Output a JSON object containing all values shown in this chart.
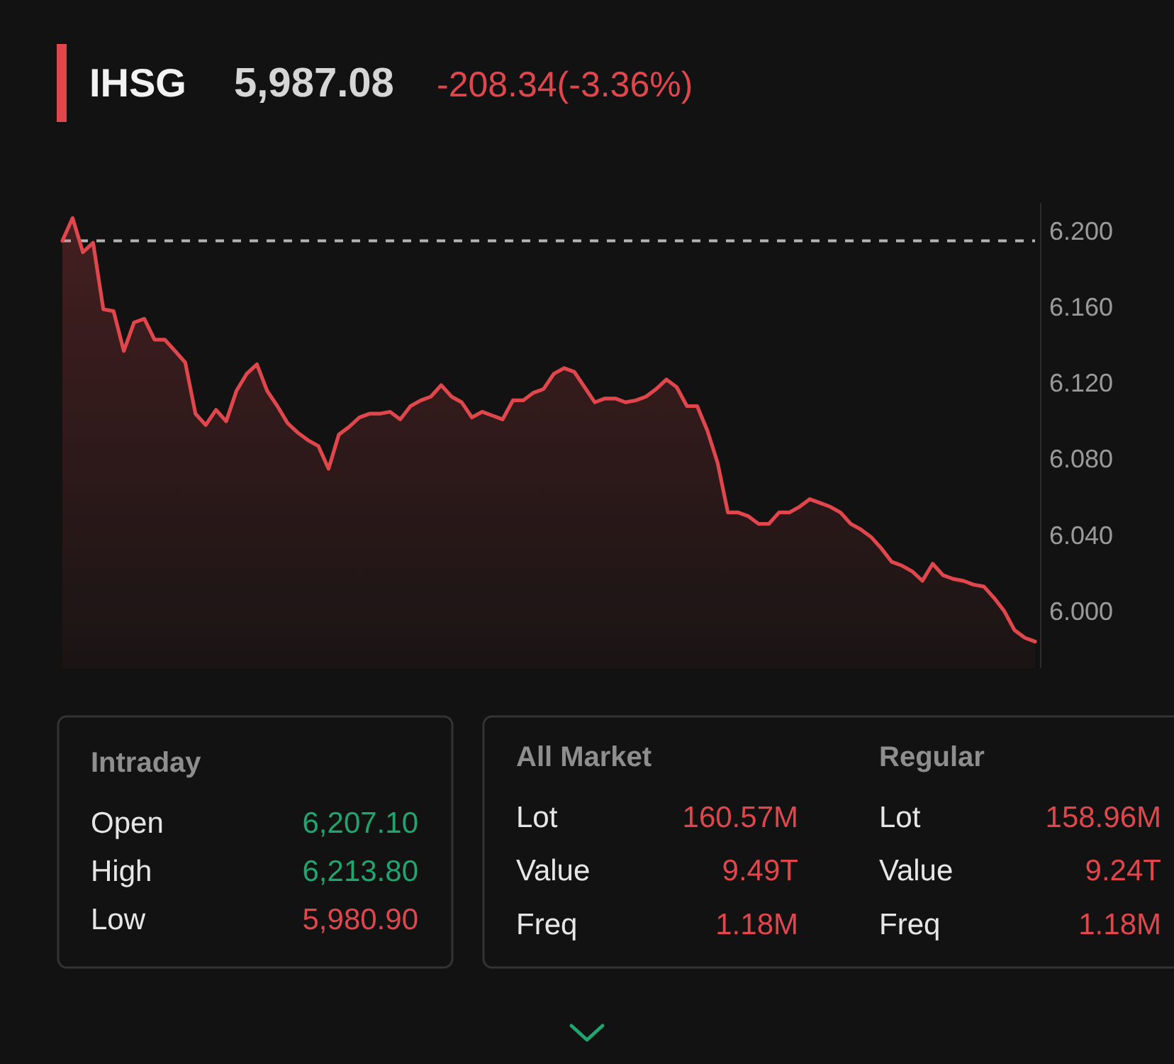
{
  "chart_data": [
    {
      "type": "area",
      "title": "IHSG",
      "subtitle": "5,987.08",
      "annotations": [
        "-208.34(-3.36%)"
      ],
      "categories": [
        null,
        null,
        null,
        null,
        null,
        null,
        null,
        null,
        null,
        null,
        null,
        null,
        null,
        null,
        null,
        null,
        null,
        null,
        null,
        null,
        null,
        null,
        null,
        null,
        null,
        null,
        null,
        null,
        null,
        null,
        null,
        null,
        null,
        null,
        null,
        null,
        null,
        null,
        null,
        null,
        null,
        null,
        null,
        null,
        null,
        null,
        null,
        null,
        null,
        null,
        null,
        null,
        null,
        null,
        null,
        null,
        null,
        null,
        null,
        null,
        null,
        null,
        null,
        null,
        null,
        null,
        null,
        null,
        null,
        null,
        null,
        null,
        null,
        null,
        null,
        null,
        null,
        null,
        null,
        null,
        null,
        null,
        null,
        null,
        null,
        null,
        null,
        null,
        null,
        null,
        null,
        null,
        null,
        null,
        null,
        null
      ],
      "values": [
        6.195,
        6.207,
        6.189,
        6.194,
        6.159,
        6.158,
        6.137,
        6.152,
        6.154,
        6.143,
        6.143,
        6.137,
        6.131,
        6.104,
        6.098,
        6.106,
        6.1,
        6.116,
        6.125,
        6.13,
        6.116,
        6.108,
        6.099,
        6.094,
        6.09,
        6.087,
        6.075,
        6.093,
        6.097,
        6.102,
        6.104,
        6.104,
        6.105,
        6.101,
        6.108,
        6.111,
        6.113,
        6.119,
        6.113,
        6.11,
        6.102,
        6.105,
        6.103,
        6.101,
        6.111,
        6.111,
        6.115,
        6.117,
        6.125,
        6.128,
        6.126,
        6.118,
        6.11,
        6.112,
        6.112,
        6.11,
        6.111,
        6.113,
        6.117,
        6.122,
        6.118,
        6.108,
        6.108,
        6.095,
        6.078,
        6.052,
        6.052,
        6.05,
        6.046,
        6.046,
        6.052,
        6.052,
        6.055,
        6.059,
        6.057,
        6.055,
        6.052,
        6.046,
        6.043,
        6.039,
        6.033,
        6.026,
        6.024,
        6.021,
        6.016,
        6.025,
        6.019,
        6.017,
        6.016,
        6.014,
        6.013,
        6.007,
        6.0,
        5.99,
        5.986,
        5.984
      ],
      "color": "#e0474c",
      "ylim": [
        5.97,
        6.215
      ],
      "yticks": [
        {
          "value": 6.0,
          "label": "6.000"
        },
        {
          "value": 6.04,
          "label": "6.040"
        },
        {
          "value": 6.08,
          "label": "6.080"
        },
        {
          "value": 6.12,
          "label": "6.120"
        },
        {
          "value": 6.16,
          "label": "6.160"
        },
        {
          "value": 6.2,
          "label": "6.200"
        }
      ],
      "tick_labels": "y",
      "ref_lines": [
        {
          "axis": "y",
          "value": 6.195,
          "color": "#b4b4b4",
          "line_style": "dashed"
        }
      ]
    },
    {
      "type": "other",
      "title": "Intraday",
      "categories": [
        "Open",
        "High",
        "Low"
      ],
      "value_labels": [
        "6,207.10",
        "6,213.80",
        "5,980.90"
      ],
      "colors": [
        "#1fa56e",
        "#1fa56e",
        "#e0474c"
      ]
    },
    {
      "type": "other",
      "title": "All Market",
      "categories": [
        "Lot",
        "Value",
        "Freq"
      ],
      "value_labels": [
        "160.57M",
        "9.49T",
        "1.18M"
      ],
      "color": "#e0474c"
    },
    {
      "type": "other",
      "title": "Regular",
      "categories": [
        "Lot",
        "Value",
        "Freq"
      ],
      "value_labels": [
        "158.96M",
        "9.24T",
        "1.18M"
      ],
      "color": "#e0474c"
    }
  ]
}
